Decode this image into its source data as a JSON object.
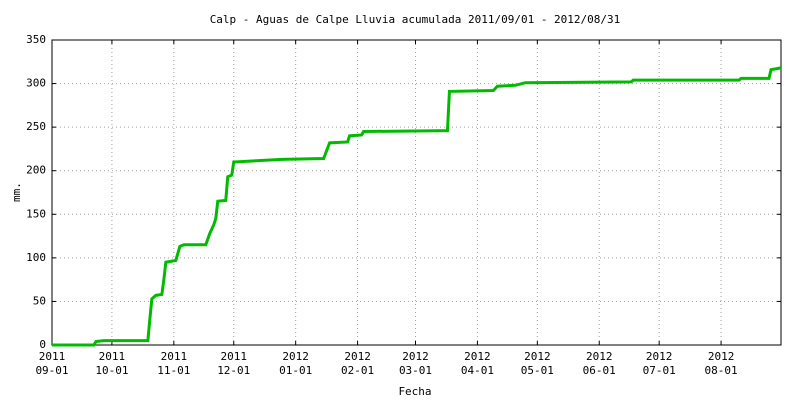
{
  "chart_data": {
    "type": "line",
    "title": "Calp - Aguas de Calpe Lluvia acumulada 2011/09/01 - 2012/08/31",
    "x_label": "Fecha",
    "y_label": "mm.",
    "x": [
      "2011-09-01",
      "2011-09-22",
      "2011-09-23",
      "2011-09-27",
      "2011-10-19",
      "2011-10-20",
      "2011-10-21",
      "2011-10-23",
      "2011-10-26",
      "2011-10-27",
      "2011-10-28",
      "2011-11-02",
      "2011-11-04",
      "2011-11-06",
      "2011-11-17",
      "2011-11-19",
      "2011-11-21",
      "2011-11-22",
      "2011-11-23",
      "2011-11-27",
      "2011-11-28",
      "2011-11-30",
      "2011-12-01",
      "2011-12-09",
      "2011-12-25",
      "2012-01-15",
      "2012-01-18",
      "2012-01-27",
      "2012-01-28",
      "2012-02-03",
      "2012-02-04",
      "2012-03-17",
      "2012-03-18",
      "2012-04-09",
      "2012-04-11",
      "2012-04-20",
      "2012-04-25",
      "2012-06-17",
      "2012-06-18",
      "2012-08-10",
      "2012-08-11",
      "2012-08-25",
      "2012-08-26",
      "2012-08-31"
    ],
    "series": [
      {
        "name": "Lluvia acumulada",
        "color": "#00bb00",
        "values": [
          0,
          0,
          4,
          5,
          5,
          30,
          53,
          57,
          58,
          75,
          95,
          97,
          113,
          115,
          115,
          128,
          138,
          145,
          165,
          166,
          193,
          195,
          210,
          211,
          213,
          214,
          232,
          233,
          240,
          241,
          245,
          246,
          291,
          292,
          297,
          298,
          301,
          302,
          304,
          304,
          306,
          306,
          316,
          318
        ]
      }
    ],
    "xlim": [
      "2011-09-01",
      "2012-08-31"
    ],
    "xticks": [
      {
        "value": "2011-09-01",
        "year": "2011",
        "label": "09-01"
      },
      {
        "value": "2011-10-01",
        "year": "2011",
        "label": "10-01"
      },
      {
        "value": "2011-11-01",
        "year": "2011",
        "label": "11-01"
      },
      {
        "value": "2011-12-01",
        "year": "2011",
        "label": "12-01"
      },
      {
        "value": "2012-01-01",
        "year": "2012",
        "label": "01-01"
      },
      {
        "value": "2012-02-01",
        "year": "2012",
        "label": "02-01"
      },
      {
        "value": "2012-03-01",
        "year": "2012",
        "label": "03-01"
      },
      {
        "value": "2012-04-01",
        "year": "2012",
        "label": "04-01"
      },
      {
        "value": "2012-05-01",
        "year": "2012",
        "label": "05-01"
      },
      {
        "value": "2012-06-01",
        "year": "2012",
        "label": "06-01"
      },
      {
        "value": "2012-07-01",
        "year": "2012",
        "label": "07-01"
      },
      {
        "value": "2012-08-01",
        "year": "2012",
        "label": "08-01"
      }
    ],
    "ylim": [
      0,
      350
    ],
    "yticks": [
      0,
      50,
      100,
      150,
      200,
      250,
      300,
      350
    ],
    "grid": true
  }
}
